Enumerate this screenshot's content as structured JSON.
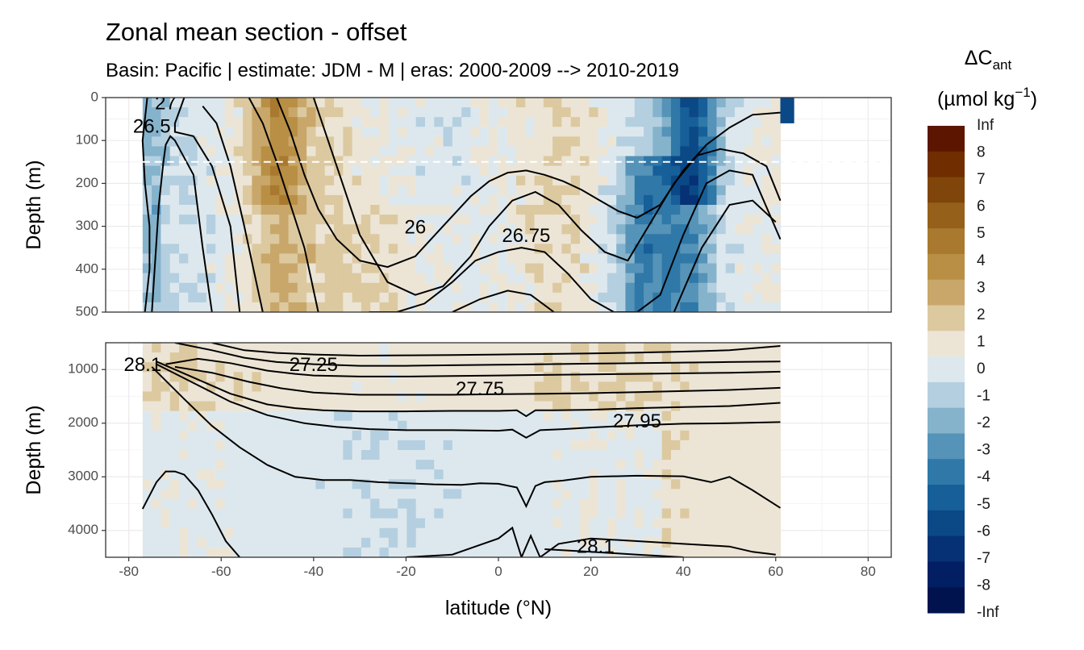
{
  "title": "Zonal mean section - offset",
  "subtitle": "Basin: Pacific | estimate: JDM - M | eras: 2000-2009 --> 2010-2019",
  "chart_data": {
    "type": "heatmap",
    "xlabel": "latitude (°N)",
    "ylabel": "Depth (m)",
    "x_ticks": [
      "-80",
      "-60",
      "-40",
      "-20",
      "0",
      "20",
      "40",
      "60",
      "80"
    ],
    "xlim": [
      -85,
      85
    ],
    "data_lat_range": [
      -77,
      64
    ],
    "grid": true,
    "panels": [
      {
        "name": "upper",
        "ylim": [
          500,
          0
        ],
        "y_ticks": [
          "0",
          "100",
          "200",
          "300",
          "400",
          "500"
        ],
        "reference_depth_dashed": 150,
        "contour_labels": [
          {
            "text": "26",
            "lat": -18,
            "depth": 305
          },
          {
            "text": "26.75",
            "lat": 6,
            "depth": 325
          },
          {
            "text": "26.5",
            "lat": -75,
            "depth": 70
          },
          {
            "text": "27",
            "lat": -72,
            "depth": 15
          }
        ],
        "contour_lines": [
          {
            "x": [
              -76.5,
              -75.5,
              -75.5,
              -76.5,
              -77,
              -76
            ],
            "y": [
              500,
              400,
              300,
              200,
              100,
              0
            ]
          },
          {
            "x": [
              -75,
              -73.5,
              -72.5,
              -72,
              -71,
              -70,
              -66,
              -64,
              -62
            ],
            "y": [
              500,
              250,
              150,
              110,
              90,
              100,
              180,
              350,
              500
            ]
          },
          {
            "x": [
              -68,
              -69,
              -70,
              -70,
              -66,
              -62,
              -58,
              -56
            ],
            "y": [
              0,
              30,
              60,
              80,
              90,
              160,
              300,
              500
            ]
          },
          {
            "x": [
              -64,
              -61,
              -58,
              -55,
              -53,
              -51
            ],
            "y": [
              20,
              60,
              160,
              300,
              400,
              500
            ]
          },
          {
            "x": [
              -54,
              -51,
              -48,
              -45,
              -42,
              -39
            ],
            "y": [
              0,
              60,
              150,
              250,
              350,
              500
            ]
          },
          {
            "x": [
              -48,
              -45,
              -42,
              -39,
              -35,
              -30,
              -24,
              -18,
              -12,
              -6,
              -2,
              2,
              6,
              10,
              14,
              18,
              22,
              26,
              30,
              35,
              40,
              45,
              50,
              55,
              61
            ],
            "y": [
              0,
              80,
              180,
              260,
              330,
              380,
              395,
              370,
              300,
              230,
              195,
              175,
              170,
              180,
              195,
              215,
              240,
              265,
              280,
              250,
              170,
              110,
              70,
              40,
              35
            ]
          },
          {
            "x": [
              -40,
              -35,
              -30,
              -24,
              -18,
              -12,
              -6,
              -2,
              3,
              8,
              13,
              18,
              23,
              28,
              33,
              38,
              43,
              48,
              53,
              58,
              61
            ],
            "y": [
              0,
              160,
              320,
              430,
              460,
              440,
              370,
              300,
              240,
              220,
              250,
              310,
              360,
              380,
              290,
              200,
              135,
              120,
              130,
              160,
              240
            ]
          },
          {
            "x": [
              -28,
              -22,
              -16,
              -10,
              -5,
              0,
              5,
              10,
              15,
              20,
              25,
              30,
              35,
              40,
              45,
              50,
              55,
              61
            ],
            "y": [
              500,
              500,
              480,
              430,
              380,
              360,
              350,
              360,
              410,
              470,
              500,
              500,
              460,
              320,
              200,
              170,
              180,
              330
            ]
          },
          {
            "x": [
              -10,
              -4,
              2,
              7,
              12
            ],
            "y": [
              500,
              470,
              450,
              460,
              500
            ]
          },
          {
            "x": [
              38,
              44,
              50,
              55,
              60
            ],
            "y": [
              500,
              350,
              250,
              240,
              290
            ]
          }
        ]
      },
      {
        "name": "lower",
        "ylim": [
          4500,
          500
        ],
        "y_ticks": [
          "1000",
          "2000",
          "3000",
          "4000"
        ],
        "contour_labels": [
          {
            "text": "28.1",
            "lat": -77,
            "depth": 930
          },
          {
            "text": "27.25",
            "lat": -40,
            "depth": 930
          },
          {
            "text": "27.75",
            "lat": -4,
            "depth": 1380
          },
          {
            "text": "27.95",
            "lat": 30,
            "depth": 1980
          },
          {
            "text": "28.1",
            "lat": 21,
            "depth": 4320
          }
        ],
        "contour_lines": [
          {
            "x": [
              -62,
              -55,
              -48,
              -40,
              -30,
              -20,
              -10,
              0,
              10,
              20,
              30,
              40,
              50,
              61
            ],
            "y": [
              500,
              640,
              690,
              720,
              740,
              735,
              730,
              720,
              710,
              700,
              685,
              665,
              640,
              560
            ]
          },
          {
            "x": [
              -70,
              -62,
              -55,
              -48,
              -40,
              -30,
              -20,
              -10,
              0,
              10,
              20,
              30,
              40,
              50,
              61
            ],
            "y": [
              500,
              640,
              780,
              860,
              900,
              930,
              930,
              920,
              910,
              900,
              890,
              880,
              870,
              860,
              850
            ]
          },
          {
            "x": [
              -72,
              -65,
              -58,
              -50,
              -44,
              -40,
              -30,
              -20,
              -10,
              0,
              10,
              20,
              30,
              40,
              50,
              61
            ],
            "y": [
              900,
              800,
              880,
              1020,
              1080,
              1110,
              1130,
              1130,
              1120,
              1110,
              1100,
              1090,
              1080,
              1070,
              1060,
              1040
            ]
          },
          {
            "x": [
              -70,
              -62,
              -54,
              -47,
              -40,
              -30,
              -20,
              -10,
              0,
              10,
              20,
              30,
              40,
              50,
              61
            ],
            "y": [
              950,
              1060,
              1230,
              1350,
              1430,
              1470,
              1470,
              1470,
              1460,
              1450,
              1440,
              1420,
              1400,
              1380,
              1340
            ]
          },
          {
            "x": [
              -74,
              -66,
              -58,
              -50,
              -44,
              -38,
              -30,
              -20,
              -10,
              0,
              4,
              6,
              8,
              12,
              20,
              30,
              40,
              50,
              61
            ],
            "y": [
              850,
              1150,
              1450,
              1650,
              1720,
              1760,
              1780,
              1780,
              1770,
              1770,
              1760,
              1870,
              1760,
              1760,
              1750,
              1720,
              1700,
              1680,
              1620
            ]
          },
          {
            "x": [
              -74,
              -66,
              -58,
              -50,
              -42,
              -35,
              -28,
              -20,
              -10,
              0,
              3,
              6,
              9,
              14,
              20,
              30,
              40,
              50,
              61
            ],
            "y": [
              900,
              1250,
              1600,
              1850,
              2000,
              2070,
              2110,
              2130,
              2130,
              2140,
              2120,
              2270,
              2130,
              2110,
              2080,
              2040,
              2010,
              2000,
              1980
            ]
          },
          {
            "x": [
              -75,
              -68,
              -62,
              -56,
              -50,
              -44,
              -38,
              -32,
              -26,
              -20,
              -14,
              -8,
              -4,
              0,
              4,
              6,
              8,
              10,
              14,
              20,
              30,
              40,
              46,
              50,
              55,
              61
            ],
            "y": [
              950,
              1550,
              2050,
              2450,
              2780,
              3000,
              3060,
              3060,
              3100,
              3120,
              3140,
              3150,
              3120,
              3130,
              3200,
              3550,
              3170,
              3100,
              3070,
              3000,
              2980,
              2990,
              3100,
              3000,
              3250,
              3580
            ]
          },
          {
            "x": [
              -77,
              -74,
              -72,
              -70,
              -68,
              -65,
              -62,
              -59,
              -56
            ],
            "y": [
              3600,
              3100,
              2900,
              2900,
              2960,
              3250,
              3700,
              4200,
              4500
            ]
          },
          {
            "x": [
              -20,
              -10,
              -5,
              0,
              3,
              5,
              7,
              9,
              13,
              20,
              30,
              40,
              50,
              55,
              60
            ],
            "y": [
              4500,
              4450,
              4300,
              4150,
              3950,
              4500,
              4100,
              4500,
              4250,
              4150,
              4200,
              4250,
              4300,
              4400,
              4450
            ]
          },
          {
            "x": [
              10,
              20,
              30,
              40
            ],
            "y": [
              4350,
              4400,
              4450,
              4500
            ]
          }
        ]
      }
    ],
    "legend": {
      "title": "ΔC",
      "title_subscript": "ant",
      "unit": "(µmol kg",
      "unit_exp": "−1",
      "unit_close": ")",
      "labels": [
        "Inf",
        "8",
        "7",
        "6",
        "5",
        "4",
        "3",
        "2",
        "1",
        "0",
        "-1",
        "-2",
        "-3",
        "-4",
        "-5",
        "-6",
        "-7",
        "-8",
        "-Inf"
      ],
      "colors": [
        "#5c1600",
        "#6f2d00",
        "#80450a",
        "#94601a",
        "#a8792e",
        "#b88f44",
        "#c9a76a",
        "#dcc9a0",
        "#ece5d6",
        "#dde8ee",
        "#b4cfe0",
        "#85b3cc",
        "#5593b8",
        "#2f78a8",
        "#175f99",
        "#0b4886",
        "#063174",
        "#021f64",
        "#00134e"
      ]
    }
  }
}
